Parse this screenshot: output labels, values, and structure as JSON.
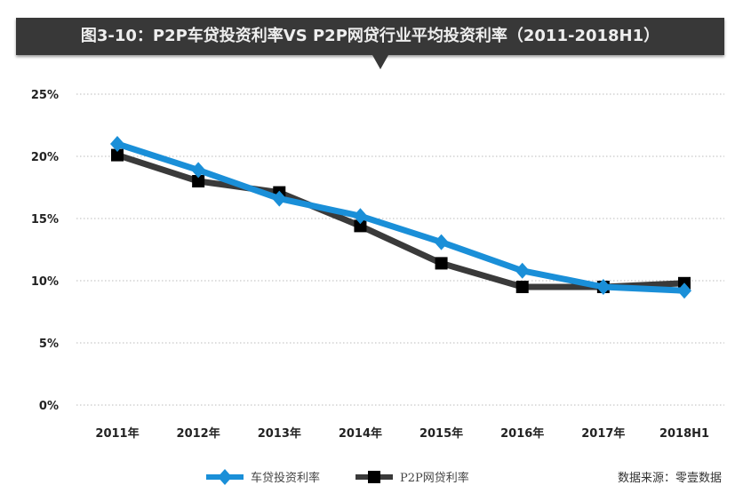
{
  "chart_data": {
    "type": "line",
    "title": "图3-10：P2P车贷投资利率VS P2P网贷行业平均投资利率（2011-2018H1）",
    "categories": [
      "2011年",
      "2012年",
      "2013年",
      "2014年",
      "2015年",
      "2016年",
      "2017年",
      "2018H1"
    ],
    "y_ticks": [
      "0%",
      "5%",
      "10%",
      "15%",
      "20%",
      "25%"
    ],
    "ylim": [
      0,
      25
    ],
    "y_unit": "%",
    "grid": "horizontal dotted",
    "legend_placement": "bottom",
    "series": [
      {
        "name": "车贷投资利率",
        "color": "#1a8fd8",
        "marker": "diamond",
        "values": [
          21.0,
          18.9,
          16.6,
          15.2,
          13.1,
          10.8,
          9.5,
          9.2
        ]
      },
      {
        "name": "P2P网贷利率",
        "color": "#3a3a3a",
        "marker": "square",
        "values": [
          20.1,
          18.0,
          17.1,
          14.4,
          11.4,
          9.5,
          9.5,
          9.8
        ]
      }
    ],
    "source": "数据来源：零壹数据"
  }
}
